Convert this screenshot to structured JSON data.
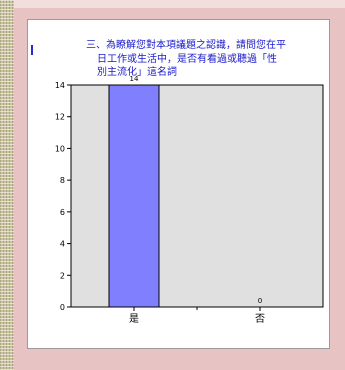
{
  "colors": {
    "bar": "#8080ff",
    "plot_bg": "#e0e0e0",
    "frame": "#e8c3c3",
    "title_text": "#1a1acc"
  },
  "chart_data": {
    "type": "bar",
    "title_lines": [
      "三、為瞭解您對本項議題之認識，請問您在平",
      "日工作或生活中，是否有看過或聽過「性",
      "別主流化」這名詞"
    ],
    "categories": [
      "是",
      "否"
    ],
    "values": [
      14,
      0
    ],
    "data_labels": [
      "14",
      "0"
    ],
    "ylim": [
      0,
      14
    ],
    "yticks": [
      0,
      2,
      4,
      6,
      8,
      10,
      12,
      14
    ],
    "grid": false,
    "xlabel": "",
    "ylabel": ""
  }
}
